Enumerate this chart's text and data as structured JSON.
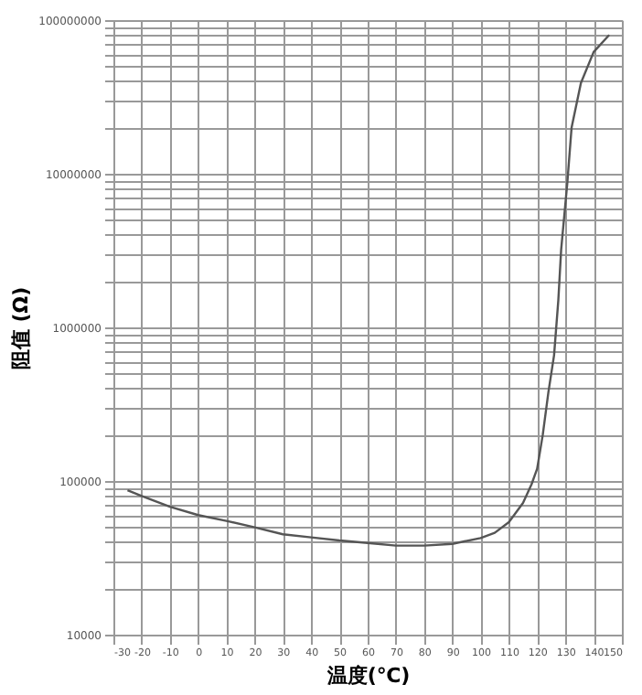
{
  "chart_data": {
    "type": "line",
    "xlabel": "温度(℃)",
    "ylabel": "阻值 (Ω)",
    "log": "y",
    "x": [
      -25,
      -20,
      -10,
      0,
      10,
      20,
      30,
      40,
      50,
      60,
      70,
      80,
      90,
      100,
      105,
      110,
      115,
      118,
      120,
      122,
      124,
      126,
      127.5,
      128.5,
      130.7,
      132.2,
      135.5,
      140,
      145.5
    ],
    "series": [
      {
        "color": "#555555",
        "values": [
          87000,
          80000,
          68000,
          60000,
          55000,
          50000,
          45000,
          43000,
          41000,
          39500,
          38000,
          38000,
          39000,
          42500,
          46000,
          54000,
          72000,
          95000,
          120000,
          200000,
          380000,
          660000,
          1500000,
          3200000,
          8800000,
          20000000,
          39000000,
          62000000,
          80000000
        ]
      }
    ],
    "xlim": [
      -30,
      150
    ],
    "xticks": [
      -30,
      -20,
      -10,
      0,
      10,
      20,
      30,
      40,
      50,
      60,
      70,
      80,
      90,
      100,
      110,
      120,
      130,
      140,
      150
    ],
    "ylim": [
      10000,
      100000000
    ],
    "yticks": [
      10000,
      {
        "value": 20000,
        "label": null
      },
      {
        "value": 30000,
        "label": null
      },
      {
        "value": 40000,
        "label": null
      },
      {
        "value": 50000,
        "label": null
      },
      {
        "value": 60000,
        "label": null
      },
      {
        "value": 70000,
        "label": null
      },
      {
        "value": 80000,
        "label": null
      },
      {
        "value": 90000,
        "label": null
      },
      100000,
      {
        "value": 200000,
        "label": null
      },
      {
        "value": 300000,
        "label": null
      },
      {
        "value": 400000,
        "label": null
      },
      {
        "value": 500000,
        "label": null
      },
      {
        "value": 600000,
        "label": null
      },
      {
        "value": 700000,
        "label": null
      },
      {
        "value": 800000,
        "label": null
      },
      {
        "value": 900000,
        "label": null
      },
      1000000,
      {
        "value": 2000000,
        "label": null
      },
      {
        "value": 3000000,
        "label": null
      },
      {
        "value": 4000000,
        "label": null
      },
      {
        "value": 5000000,
        "label": null
      },
      {
        "value": 6000000,
        "label": null
      },
      {
        "value": 7000000,
        "label": null
      },
      {
        "value": 8000000,
        "label": null
      },
      {
        "value": 9000000,
        "label": null
      },
      10000000,
      {
        "value": 20000000,
        "label": null
      },
      {
        "value": 30000000,
        "label": null
      },
      {
        "value": 40000000,
        "label": null
      },
      {
        "value": 50000000,
        "label": null
      },
      {
        "value": 60000000,
        "label": null
      },
      {
        "value": 70000000,
        "label": null
      },
      {
        "value": 80000000,
        "label": null
      },
      {
        "value": 90000000,
        "label": null
      },
      100000000
    ],
    "grid": true,
    "marker": "none",
    "line_style": "solid"
  }
}
